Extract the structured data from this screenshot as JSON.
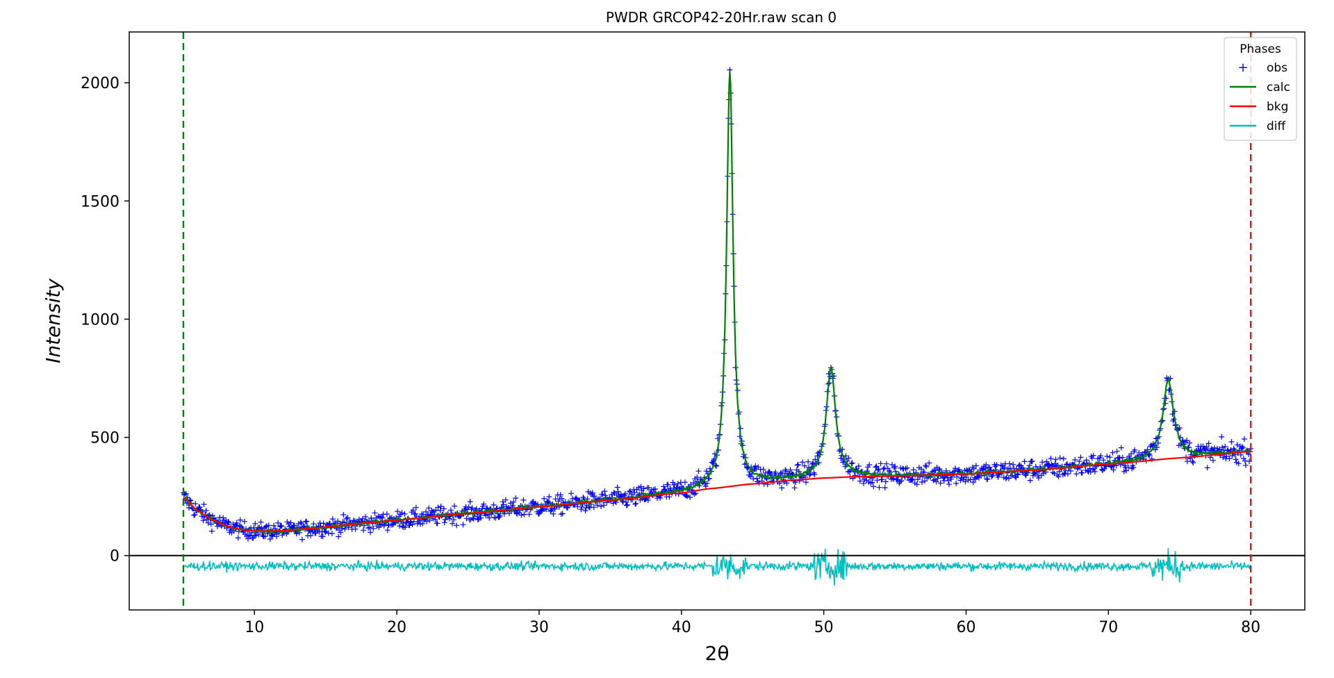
{
  "chart_data": {
    "type": "line",
    "title": "PWDR GRCOP42-20Hr.raw scan 0",
    "xlabel": "2θ",
    "ylabel": "Intensity",
    "xlim": [
      1.2,
      83.8
    ],
    "ylim": [
      -230,
      2215
    ],
    "xticks": [
      10,
      20,
      30,
      40,
      50,
      60,
      70,
      80
    ],
    "yticks": [
      0,
      500,
      1000,
      1500,
      2000
    ],
    "grid": false,
    "legend": {
      "title": "Phases",
      "placement": "top-right",
      "entries": [
        "obs",
        "calc",
        "bkg",
        "diff"
      ]
    },
    "limits": {
      "lower": 5,
      "upper": 80,
      "lower_color": "#008000",
      "upper_color": "#ff0000"
    },
    "zero_line": 0,
    "colors": {
      "obs": "#0000ff",
      "calc": "#008000",
      "bkg": "#ff0000",
      "diff": "#00bfbf"
    },
    "x_range": [
      5,
      80
    ],
    "background": {
      "x": [
        5,
        6,
        7,
        8,
        9,
        10,
        11,
        12,
        14,
        16,
        18,
        20,
        25,
        30,
        35,
        40,
        42,
        45,
        48,
        50,
        52,
        55,
        60,
        65,
        70,
        75,
        80
      ],
      "y": [
        245,
        190,
        152,
        125,
        110,
        104,
        103,
        105,
        115,
        127,
        139,
        150,
        178,
        206,
        234,
        265,
        283,
        303,
        320,
        328,
        333,
        336,
        345,
        362,
        387,
        413,
        440
      ]
    },
    "peaks": [
      {
        "position": 43.4,
        "height": 2045,
        "fwhm": 0.55
      },
      {
        "position": 50.5,
        "height": 790,
        "fwhm": 0.8
      },
      {
        "position": 74.2,
        "height": 745,
        "fwhm": 0.9
      }
    ],
    "diff": {
      "offset": -45,
      "spread": 45
    }
  }
}
